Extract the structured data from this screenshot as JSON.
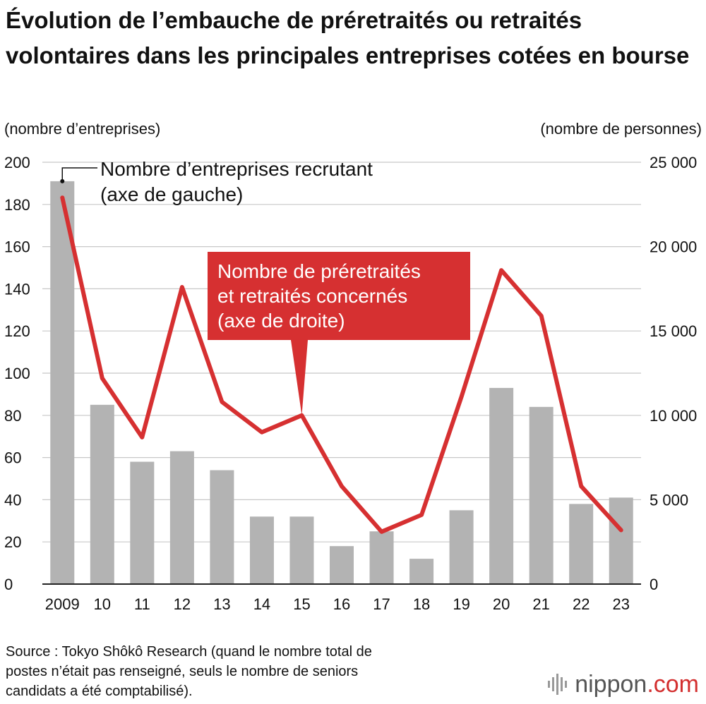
{
  "chart_data": {
    "type": "bar",
    "title": "Évolution de l’embauche de préretraités ou retraités volontaires dans les principales entreprises cotées en bourse",
    "ylabel_left": "(nombre d’entreprises)",
    "ylabel_right": "(nombre de personnes)",
    "categories": [
      "2009",
      "10",
      "11",
      "12",
      "13",
      "14",
      "15",
      "16",
      "17",
      "18",
      "19",
      "20",
      "21",
      "22",
      "23"
    ],
    "ylim_left": [
      0,
      200
    ],
    "yticks_left": [
      "0",
      "20",
      "40",
      "60",
      "80",
      "100",
      "120",
      "140",
      "160",
      "180",
      "200"
    ],
    "ylim_right": [
      0,
      25000
    ],
    "yticks_right": [
      "0",
      "5 000",
      "10 000",
      "15 000",
      "20 000",
      "25 000"
    ],
    "grid": true,
    "series": [
      {
        "name": "Nombre d’entreprises recrutant (axe de gauche)",
        "label_lines": [
          "Nombre d’entreprises recrutant",
          "(axe de gauche)"
        ],
        "type": "bar",
        "axis": "left",
        "color": "#b3b3b3",
        "values": [
          191,
          85,
          58,
          63,
          54,
          32,
          32,
          18,
          25,
          12,
          35,
          93,
          84,
          38,
          41
        ]
      },
      {
        "name": "Nombre de préretraités et retraités concernés (axe de droite)",
        "label_lines": [
          "Nombre de préretraités",
          "et retraités concernés",
          "(axe de droite)"
        ],
        "type": "line",
        "axis": "right",
        "color": "#d63031",
        "values": [
          22900,
          12200,
          8700,
          17600,
          10800,
          9000,
          10000,
          5800,
          3100,
          4100,
          11100,
          18600,
          15900,
          5800,
          3200
        ]
      }
    ]
  },
  "footer": {
    "source": "Source : Tokyo Shôkô Research (quand le nombre total de\npostes n’était pas renseigné, seuls le nombre de seniors\ncandidats a été comptabilisé).",
    "brand": "nippon",
    "brand_suffix": ".com"
  },
  "colors": {
    "accent": "#d63031",
    "bar": "#b3b3b3",
    "grid": "#c8c8c8",
    "axis": "#222222"
  }
}
